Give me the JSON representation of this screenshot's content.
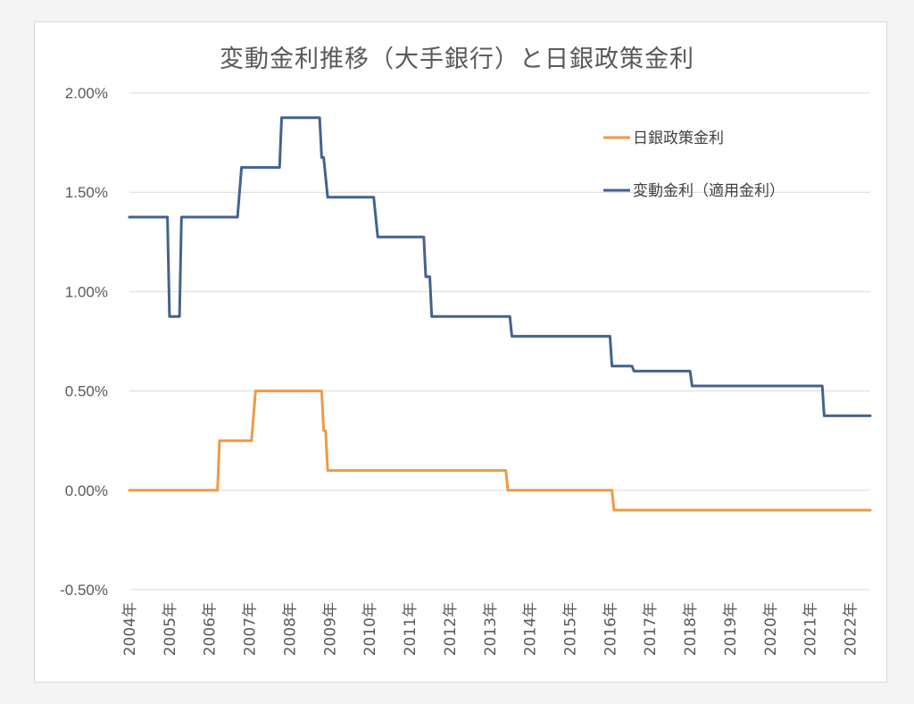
{
  "chart_data": {
    "type": "line",
    "title": "変動金利推移（大手銀行）と日銀政策金利",
    "xlabel": "",
    "ylabel": "",
    "x_range": [
      2004.0,
      2022.5
    ],
    "ylim": [
      -0.5,
      2.0
    ],
    "y_ticks": [
      "2.00%",
      "1.50%",
      "1.00%",
      "0.50%",
      "0.00%",
      "-0.50%"
    ],
    "y_tick_values": [
      2.0,
      1.5,
      1.0,
      0.5,
      0.0,
      -0.5
    ],
    "x_ticks": [
      "2004年",
      "2005年",
      "2006年",
      "2007年",
      "2008年",
      "2009年",
      "2010年",
      "2011年",
      "2012年",
      "2013年",
      "2014年",
      "2015年",
      "2016年",
      "2017年",
      "2018年",
      "2019年",
      "2020年",
      "2021年",
      "2022年"
    ],
    "x_tick_values": [
      2004,
      2005,
      2006,
      2007,
      2008,
      2009,
      2010,
      2011,
      2012,
      2013,
      2014,
      2015,
      2016,
      2017,
      2018,
      2019,
      2020,
      2021,
      2022
    ],
    "grid": true,
    "legend_position": "top-right",
    "series": [
      {
        "name": "日銀政策金利",
        "color": "#ed9a47",
        "points": [
          [
            2004.0,
            0.0
          ],
          [
            2006.2,
            0.0
          ],
          [
            2006.25,
            0.25
          ],
          [
            2007.05,
            0.25
          ],
          [
            2007.15,
            0.5
          ],
          [
            2008.8,
            0.5
          ],
          [
            2008.85,
            0.3
          ],
          [
            2008.9,
            0.3
          ],
          [
            2008.95,
            0.1
          ],
          [
            2013.4,
            0.1
          ],
          [
            2013.45,
            0.0
          ],
          [
            2016.05,
            0.0
          ],
          [
            2016.1,
            -0.1
          ],
          [
            2022.5,
            -0.1
          ]
        ]
      },
      {
        "name": "変動金利（適用金利）",
        "color": "#44628f",
        "points": [
          [
            2004.0,
            1.375
          ],
          [
            2004.95,
            1.375
          ],
          [
            2005.0,
            0.875
          ],
          [
            2005.25,
            0.875
          ],
          [
            2005.3,
            1.375
          ],
          [
            2006.7,
            1.375
          ],
          [
            2006.8,
            1.625
          ],
          [
            2007.75,
            1.625
          ],
          [
            2007.8,
            1.875
          ],
          [
            2008.75,
            1.875
          ],
          [
            2008.8,
            1.675
          ],
          [
            2008.85,
            1.675
          ],
          [
            2008.95,
            1.475
          ],
          [
            2010.1,
            1.475
          ],
          [
            2010.2,
            1.275
          ],
          [
            2011.35,
            1.275
          ],
          [
            2011.4,
            1.075
          ],
          [
            2011.5,
            1.075
          ],
          [
            2011.55,
            0.875
          ],
          [
            2013.5,
            0.875
          ],
          [
            2013.55,
            0.775
          ],
          [
            2016.0,
            0.775
          ],
          [
            2016.05,
            0.625
          ],
          [
            2016.55,
            0.625
          ],
          [
            2016.6,
            0.6
          ],
          [
            2018.0,
            0.6
          ],
          [
            2018.05,
            0.525
          ],
          [
            2021.3,
            0.525
          ],
          [
            2021.35,
            0.375
          ],
          [
            2022.5,
            0.375
          ]
        ]
      }
    ]
  }
}
